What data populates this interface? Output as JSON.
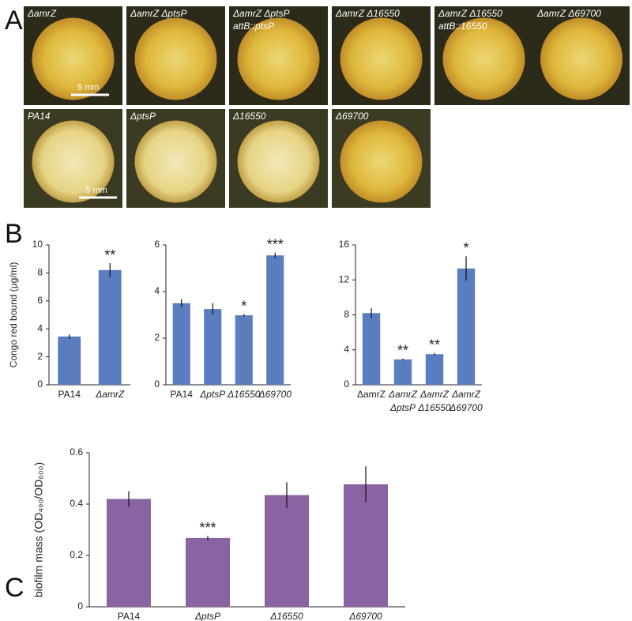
{
  "panel_labels": [
    "A",
    "B",
    "C"
  ],
  "photos": [
    {
      "lines": [
        "ΔamrZ"
      ]
    },
    {
      "lines": [
        "ΔamrZ ΔptsP"
      ]
    },
    {
      "lines": [
        "ΔamrZ ΔptsP",
        "attB::ptsP"
      ]
    },
    {
      "lines": [
        "ΔamrZ Δ16550"
      ]
    },
    {
      "lines": [
        "ΔamrZ Δ16550",
        "attB::16550"
      ]
    },
    {
      "lines": [
        "ΔamrZ Δ69700"
      ]
    },
    {
      "lines": [
        "PA14"
      ]
    },
    {
      "lines": [
        "ΔptsP"
      ]
    },
    {
      "lines": [
        "Δ16550"
      ]
    },
    {
      "lines": [
        "Δ69700"
      ]
    }
  ],
  "scale_bars": [
    "5 mm",
    "5 mm"
  ],
  "chart_data": [
    {
      "type": "bar",
      "y_label": "Congo red bound (µg/ml)",
      "color": "#5a7dbf",
      "categories": [
        [
          "PA14"
        ],
        [
          "ΔamrZ"
        ]
      ],
      "values": [
        3.45,
        8.2
      ],
      "error": [
        0.15,
        0.5
      ],
      "significance": [
        null,
        "**"
      ],
      "ylim": [
        0,
        10
      ],
      "yticks": [
        0,
        2,
        4,
        6,
        8,
        10
      ]
    },
    {
      "type": "bar",
      "color": "#5a7dbf",
      "categories": [
        [
          "PA14"
        ],
        [
          "ΔptsP"
        ],
        [
          "Δ16550"
        ],
        [
          "Δ69700"
        ]
      ],
      "values": [
        3.5,
        3.25,
        2.98,
        5.55
      ],
      "error": [
        0.17,
        0.25,
        0.05,
        0.12
      ],
      "significance": [
        null,
        null,
        "*",
        "***"
      ],
      "ylim": [
        0,
        6
      ],
      "yticks": [
        0,
        2,
        4,
        6
      ]
    },
    {
      "type": "bar",
      "color": "#5a7dbf",
      "categories": [
        [
          "ΔamrZ"
        ],
        [
          "ΔamrZ",
          "ΔptsP"
        ],
        [
          "ΔamrZ",
          "Δ16550"
        ],
        [
          "ΔamrZ",
          "Δ69700"
        ]
      ],
      "values": [
        8.2,
        2.9,
        3.5,
        13.3
      ],
      "error": [
        0.55,
        0.1,
        0.15,
        1.4
      ],
      "significance": [
        null,
        "**",
        "**",
        "*"
      ],
      "ylim": [
        0,
        16
      ],
      "yticks": [
        0,
        4,
        8,
        12,
        16
      ]
    },
    {
      "type": "bar",
      "y_label": "biofilm mass (OD₄₉₀/OD₆₀₀)",
      "color": "#8a63a3",
      "categories": [
        [
          "PA14"
        ],
        [
          "ΔptsP"
        ],
        [
          "Δ16550"
        ],
        [
          "Δ69700"
        ]
      ],
      "values": [
        0.42,
        0.268,
        0.435,
        0.477
      ],
      "error": [
        0.03,
        0.008,
        0.05,
        0.07
      ],
      "significance": [
        null,
        "***",
        null,
        null
      ],
      "ylim": [
        0,
        0.6
      ],
      "yticks": [
        0,
        0.2,
        0.4,
        0.6
      ]
    }
  ]
}
